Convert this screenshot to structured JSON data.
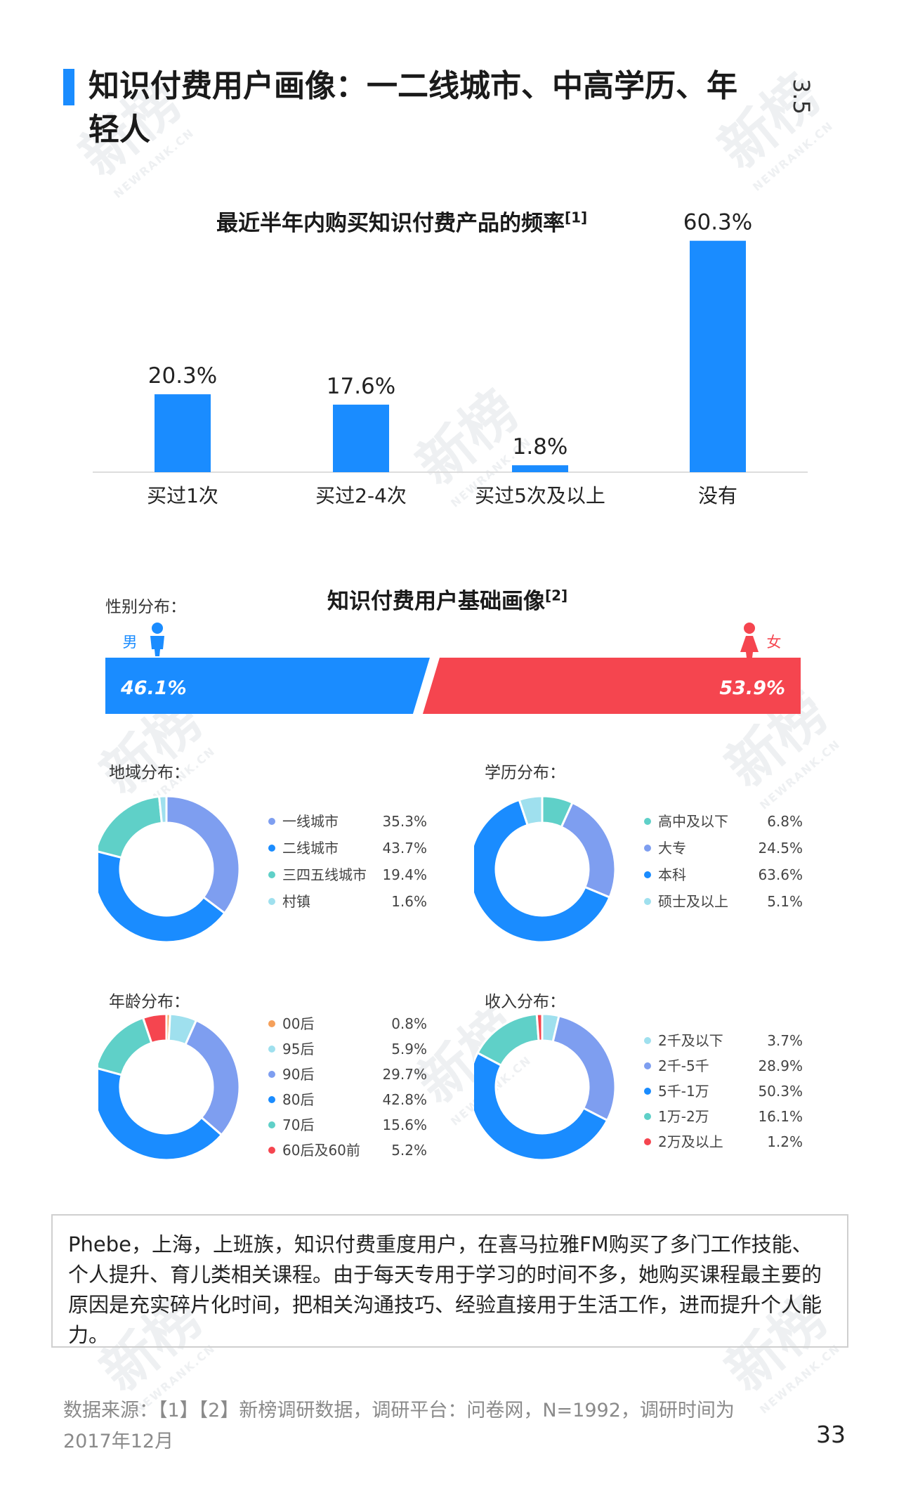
{
  "header": {
    "title": "知识付费用户画像：一二线城市、中高学历、年轻人",
    "section_number": "3.5"
  },
  "watermark": {
    "brand": "新榜",
    "brand_en": "NEWRANK.CN"
  },
  "chart_data": [
    {
      "type": "bar",
      "title": "最近半年内购买知识付费产品的频率",
      "title_ref": "[1]",
      "categories": [
        "买过1次",
        "买过2-4次",
        "买过5次及以上",
        "没有"
      ],
      "values": [
        20.3,
        17.6,
        1.8,
        60.3
      ],
      "value_labels": [
        "20.3%",
        "17.6%",
        "1.8%",
        "60.3%"
      ],
      "ylim": [
        0,
        65
      ],
      "color": "#1a8cff"
    },
    {
      "type": "bar",
      "title": "知识付费用户基础画像",
      "title_ref": "[2]",
      "section_label": "性别分布：",
      "categories": [
        "男",
        "女"
      ],
      "values": [
        46.1,
        53.9
      ],
      "value_labels": [
        "46.1%",
        "53.9%"
      ],
      "colors": [
        "#1a8cff",
        "#f5454f"
      ]
    },
    {
      "type": "pie",
      "title": "地域分布：",
      "categories": [
        "一线城市",
        "二线城市",
        "三四五线城市",
        "村镇"
      ],
      "values": [
        35.3,
        43.7,
        19.4,
        1.6
      ],
      "value_labels": [
        "35.3%",
        "43.7%",
        "19.4%",
        "1.6%"
      ],
      "colors": [
        "#7e9ef0",
        "#1a8cff",
        "#5fd0c8",
        "#9fe0ee"
      ]
    },
    {
      "type": "pie",
      "title": "学历分布：",
      "categories": [
        "高中及以下",
        "大专",
        "本科",
        "硕士及以上"
      ],
      "values": [
        6.8,
        24.5,
        63.6,
        5.1
      ],
      "value_labels": [
        "6.8%",
        "24.5%",
        "63.6%",
        "5.1%"
      ],
      "colors": [
        "#5fd0c8",
        "#7e9ef0",
        "#1a8cff",
        "#9fe0ee"
      ]
    },
    {
      "type": "pie",
      "title": "年龄分布：",
      "categories": [
        "00后",
        "95后",
        "90后",
        "80后",
        "70后",
        "60后及60前"
      ],
      "values": [
        0.8,
        5.9,
        29.7,
        42.8,
        15.6,
        5.2
      ],
      "value_labels": [
        "0.8%",
        "5.9%",
        "29.7%",
        "42.8%",
        "15.6%",
        "5.2%"
      ],
      "colors": [
        "#f5a05a",
        "#9fe0ee",
        "#7e9ef0",
        "#1a8cff",
        "#5fd0c8",
        "#f5454f"
      ]
    },
    {
      "type": "pie",
      "title": "收入分布：",
      "categories": [
        "2千及以下",
        "2千-5千",
        "5千-1万",
        "1万-2万",
        "2万及以上"
      ],
      "values": [
        3.7,
        28.9,
        50.3,
        16.1,
        1.2
      ],
      "value_labels": [
        "3.7%",
        "28.9%",
        "50.3%",
        "16.1%",
        "1.2%"
      ],
      "colors": [
        "#9fe0ee",
        "#7e9ef0",
        "#1a8cff",
        "#5fd0c8",
        "#f5454f"
      ]
    }
  ],
  "quote": {
    "text": "Phebe，上海，上班族，知识付费重度用户，在喜马拉雅FM购买了多门工作技能、个人提升、育儿类相关课程。由于每天专用于学习的时间不多，她购买课程最主要的原因是充实碎片化时间，把相关沟通技巧、经验直接用于生活工作，进而提升个人能力。"
  },
  "footer": {
    "source": "数据来源：【1】【2】新榜调研数据，调研平台：问卷网，N=1992，调研时间为2017年12月",
    "page_number": "33"
  }
}
